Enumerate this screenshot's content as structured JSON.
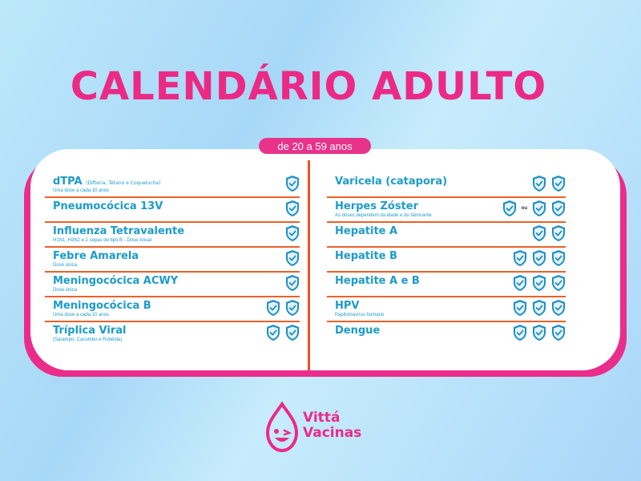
{
  "title": "CALENDÁRIO ADULTO",
  "age_range": "de 20 a 59 anos",
  "colors": {
    "pink": "#ec2a85",
    "blue": "#1c9bc9",
    "orange": "#e8622a",
    "shield": "#1e8fc4"
  },
  "left": [
    {
      "name": "dTPA",
      "name_small": "(Difteria, Tétano e Coqueluche)",
      "note": "Uma dose a cada 10 anos",
      "doses": 1
    },
    {
      "name": "Pneumocócica 13V",
      "name_small": "",
      "note": "",
      "doses": 1
    },
    {
      "name": "Influenza Tetravalente",
      "name_small": "",
      "note": "H1N1, H3N2 e 2 cepas do tipo B - Dose Anual",
      "doses": 1
    },
    {
      "name": "Febre Amarela",
      "name_small": "",
      "note": "Dose única",
      "doses": 1
    },
    {
      "name": "Meningocócica ACWY",
      "name_small": "",
      "note": "Dose única",
      "doses": 1
    },
    {
      "name": "Meningocócica B",
      "name_small": "",
      "note": "Uma dose a cada 10 anos",
      "doses": 2
    },
    {
      "name": "Tríplica Viral",
      "name_small": "",
      "note": "(Sarampo, Cacumbo e Rubéola)",
      "doses": 2
    }
  ],
  "right": [
    {
      "name": "Varicela (catapora)",
      "note": "",
      "doses": 2
    },
    {
      "name": "Herpes Zóster",
      "note": "As doses dependem da idade e do fabricante",
      "doses": 3,
      "or_label": "ou"
    },
    {
      "name": "Hepatite A",
      "note": "",
      "doses": 2
    },
    {
      "name": "Hepatite B",
      "note": "",
      "doses": 3
    },
    {
      "name": "Hepatite A e B",
      "note": "",
      "doses": 3
    },
    {
      "name": "HPV",
      "note": "Papilomavírus humano",
      "doses": 3
    },
    {
      "name": "Dengue",
      "note": "",
      "doses": 3
    }
  ],
  "logo": {
    "line1": "Vittá",
    "line2": "Vacinas",
    "icon": "drop-wink-face-icon"
  }
}
